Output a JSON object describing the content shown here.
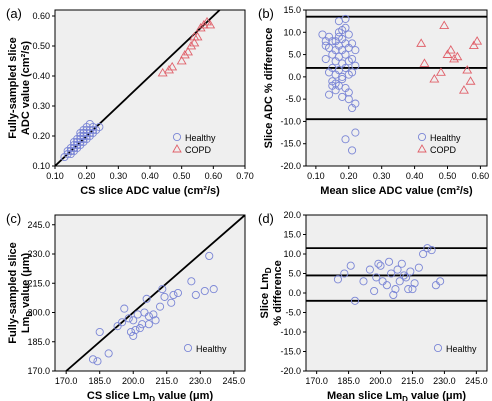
{
  "chart_data": [
    {
      "id": "a",
      "panel_label": "(a)",
      "type": "scatter",
      "xlabel": "CS slice ADC value (cm²/s)",
      "ylabel_lines": [
        "Fully-sampled slice",
        "ADC value (cm²/s)"
      ],
      "xlim": [
        0.1,
        0.7
      ],
      "ylim": [
        0.1,
        0.62
      ],
      "xticks": [
        "0.10",
        "0.20",
        "0.30",
        "0.40",
        "0.50",
        "0.60",
        "0.70"
      ],
      "xtick_values": [
        0.1,
        0.2,
        0.3,
        0.4,
        0.5,
        0.6,
        0.7
      ],
      "yticks": [
        "0.10",
        "0.20",
        "0.30",
        "0.40",
        "0.50",
        "0.60"
      ],
      "ytick_values": [
        0.1,
        0.2,
        0.3,
        0.4,
        0.5,
        0.6
      ],
      "reference_lines": [
        {
          "kind": "identity",
          "from": [
            0.1,
            0.1
          ],
          "to": [
            0.62,
            0.62
          ]
        }
      ],
      "legend": {
        "position": "bottom-right",
        "entries": [
          {
            "label": "Healthy",
            "marker": "circle"
          },
          {
            "label": "COPD",
            "marker": "triangle"
          }
        ]
      },
      "series": [
        {
          "name": "Healthy",
          "marker": "circle",
          "color": "#7b86d6",
          "x": [
            0.13,
            0.14,
            0.14,
            0.15,
            0.15,
            0.15,
            0.16,
            0.16,
            0.16,
            0.16,
            0.17,
            0.17,
            0.17,
            0.17,
            0.18,
            0.18,
            0.18,
            0.18,
            0.18,
            0.19,
            0.19,
            0.19,
            0.19,
            0.19,
            0.2,
            0.2,
            0.2,
            0.2,
            0.21,
            0.21,
            0.21,
            0.22,
            0.22,
            0.23,
            0.16,
            0.17,
            0.18,
            0.19,
            0.2,
            0.21,
            0.15,
            0.17,
            0.19,
            0.22,
            0.24
          ],
          "y": [
            0.13,
            0.14,
            0.15,
            0.14,
            0.15,
            0.16,
            0.15,
            0.16,
            0.17,
            0.18,
            0.16,
            0.17,
            0.18,
            0.19,
            0.17,
            0.18,
            0.19,
            0.2,
            0.21,
            0.18,
            0.19,
            0.2,
            0.21,
            0.22,
            0.19,
            0.2,
            0.21,
            0.22,
            0.2,
            0.21,
            0.22,
            0.21,
            0.23,
            0.22,
            0.16,
            0.18,
            0.19,
            0.21,
            0.23,
            0.24,
            0.15,
            0.17,
            0.2,
            0.22,
            0.23
          ]
        },
        {
          "name": "COPD",
          "marker": "triangle",
          "color": "#e0606a",
          "x": [
            0.44,
            0.46,
            0.47,
            0.5,
            0.51,
            0.52,
            0.53,
            0.54,
            0.54,
            0.55,
            0.56,
            0.57,
            0.58,
            0.59
          ],
          "y": [
            0.41,
            0.42,
            0.43,
            0.45,
            0.47,
            0.48,
            0.5,
            0.51,
            0.53,
            0.53,
            0.56,
            0.57,
            0.58,
            0.57
          ]
        }
      ]
    },
    {
      "id": "b",
      "panel_label": "(b)",
      "type": "scatter",
      "xlabel": "Mean slice ADC value (cm²/s)",
      "ylabel_lines": [
        "Slice ADC % difference"
      ],
      "xlim": [
        0.07,
        0.62
      ],
      "ylim": [
        -20.0,
        15.0
      ],
      "xticks": [
        "0.10",
        "0.20",
        "0.30",
        "0.40",
        "0.50",
        "0.60"
      ],
      "xtick_values": [
        0.1,
        0.2,
        0.3,
        0.4,
        0.5,
        0.6
      ],
      "yticks": [
        "15.0",
        "10.0",
        "5.0",
        "0.0",
        "-5.0",
        "-10.0",
        "-15.0",
        "-20.0"
      ],
      "ytick_values": [
        15,
        10,
        5,
        0,
        -5,
        -10,
        -15,
        -20
      ],
      "reference_lines": [
        {
          "kind": "horizontal",
          "y": 13.5
        },
        {
          "kind": "horizontal",
          "y": 2.0
        },
        {
          "kind": "horizontal",
          "y": -9.5
        }
      ],
      "legend": {
        "position": "bottom-right",
        "entries": [
          {
            "label": "Healthy",
            "marker": "circle"
          },
          {
            "label": "COPD",
            "marker": "triangle"
          }
        ]
      },
      "series": [
        {
          "name": "Healthy",
          "marker": "circle",
          "color": "#7b86d6",
          "x": [
            0.12,
            0.13,
            0.13,
            0.14,
            0.14,
            0.14,
            0.15,
            0.15,
            0.15,
            0.15,
            0.16,
            0.16,
            0.16,
            0.16,
            0.16,
            0.17,
            0.17,
            0.17,
            0.17,
            0.17,
            0.17,
            0.18,
            0.18,
            0.18,
            0.18,
            0.18,
            0.18,
            0.19,
            0.19,
            0.19,
            0.19,
            0.19,
            0.2,
            0.2,
            0.2,
            0.2,
            0.2,
            0.21,
            0.21,
            0.21,
            0.21,
            0.22,
            0.22,
            0.22,
            0.14,
            0.16,
            0.18,
            0.2,
            0.17,
            0.19,
            0.15,
            0.21,
            0.13,
            0.19,
            0.22
          ],
          "y": [
            9.5,
            8.0,
            4.0,
            9.0,
            6.5,
            -4.0,
            8.0,
            5.0,
            2.0,
            -1.0,
            8.0,
            6.0,
            3.5,
            0.5,
            -3.0,
            12.5,
            9.0,
            7.0,
            4.5,
            1.5,
            -2.0,
            10.5,
            8.5,
            6.0,
            3.0,
            0.0,
            -4.5,
            11.0,
            7.5,
            5.0,
            2.0,
            -2.5,
            9.5,
            6.5,
            3.5,
            0.5,
            -5.0,
            7.5,
            4.0,
            1.0,
            -7.0,
            6.0,
            2.5,
            -12.5,
            1.0,
            -1.5,
            -0.5,
            -3.5,
            10.0,
            13.0,
            -2.0,
            -16.5,
            7.0,
            -14.0,
            -6.0
          ]
        },
        {
          "name": "COPD",
          "marker": "triangle",
          "color": "#e0606a",
          "x": [
            0.42,
            0.43,
            0.46,
            0.48,
            0.49,
            0.5,
            0.51,
            0.52,
            0.53,
            0.55,
            0.56,
            0.57,
            0.58,
            0.59
          ],
          "y": [
            7.5,
            3.0,
            -0.5,
            1.0,
            11.5,
            5.0,
            6.0,
            4.0,
            4.5,
            -3.0,
            1.5,
            -1.0,
            7.0,
            8.0
          ]
        }
      ]
    },
    {
      "id": "c",
      "panel_label": "(c)",
      "type": "scatter",
      "xlabel": "CS slice Lm",
      "xlabel_sub": "D",
      "xlabel_tail": " value (μm)",
      "ylabel_lines": [
        "Fully-sampled slice"
      ],
      "ylabel_line2": "Lm",
      "ylabel_line2_sub": "D",
      "ylabel_line2_tail": " value (μm)",
      "xlim": [
        165.0,
        250.0
      ],
      "ylim": [
        170.0,
        250.0
      ],
      "xticks": [
        "170.0",
        "185.0",
        "200.0",
        "215.0",
        "230.0",
        "245.0"
      ],
      "xtick_values": [
        170,
        185,
        200,
        215,
        230,
        245
      ],
      "yticks": [
        "245.0",
        "230.0",
        "215.0",
        "200.0",
        "185.0",
        "170.0"
      ],
      "ytick_values": [
        245,
        230,
        215,
        200,
        185,
        170
      ],
      "reference_lines": [
        {
          "kind": "identity",
          "from": [
            170,
            170
          ],
          "to": [
            250,
            250
          ]
        }
      ],
      "legend": {
        "position": "bottom-right",
        "entries": [
          {
            "label": "Healthy",
            "marker": "circle"
          }
        ]
      },
      "series": [
        {
          "name": "Healthy",
          "marker": "circle",
          "color": "#7b86d6",
          "x": [
            182,
            184,
            185,
            189,
            193,
            195,
            198,
            199,
            200,
            201,
            202,
            203,
            204,
            205,
            206,
            207,
            209,
            210,
            212,
            213,
            214,
            217,
            218,
            220,
            226,
            228,
            232,
            234,
            236,
            200,
            196,
            207
          ],
          "y": [
            176,
            175,
            190,
            179,
            193,
            195,
            197,
            190,
            196,
            191,
            199,
            192,
            194,
            200,
            207,
            194,
            199,
            196,
            203,
            212,
            208,
            205,
            209,
            210,
            216,
            209,
            211,
            229,
            212,
            188,
            202,
            198
          ]
        }
      ]
    },
    {
      "id": "d",
      "panel_label": "(d)",
      "type": "scatter",
      "xlabel": "Mean slice Lm",
      "xlabel_sub": "D",
      "xlabel_tail": " value (μm)",
      "ylabel_lines": [
        "% difference"
      ],
      "ylabel_line1_head": "Slice Lm",
      "ylabel_line1_sub": "D",
      "xlim": [
        165.0,
        250.0
      ],
      "ylim": [
        -20.0,
        20.0
      ],
      "xticks": [
        "170.0",
        "185.0",
        "200.0",
        "215.0",
        "230.0",
        "245.0"
      ],
      "xtick_values": [
        170,
        185,
        200,
        215,
        230,
        245
      ],
      "yticks": [
        "20.0",
        "15.0",
        "10.0",
        "5.0",
        "0.0",
        "-5.0",
        "-10.0",
        "-15.0",
        "-20.0"
      ],
      "ytick_values": [
        20,
        15,
        10,
        5,
        0,
        -5,
        -10,
        -15,
        -20
      ],
      "reference_lines": [
        {
          "kind": "horizontal",
          "y": 11.5
        },
        {
          "kind": "horizontal",
          "y": 4.5
        },
        {
          "kind": "horizontal",
          "y": -2.0
        }
      ],
      "legend": {
        "position": "bottom-right",
        "entries": [
          {
            "label": "Healthy",
            "marker": "circle"
          }
        ]
      },
      "series": [
        {
          "name": "Healthy",
          "marker": "circle",
          "color": "#7b86d6",
          "x": [
            180,
            183,
            186,
            188,
            192,
            195,
            197,
            198,
            200,
            201,
            203,
            204,
            205,
            207,
            208,
            209,
            210,
            212,
            213,
            214,
            216,
            218,
            220,
            222,
            224,
            226,
            228,
            215,
            199,
            206,
            211
          ],
          "y": [
            3.5,
            5.0,
            7.0,
            -2.0,
            3.0,
            6.0,
            0.5,
            4.0,
            7.0,
            3.0,
            2.0,
            8.0,
            5.0,
            1.0,
            6.0,
            3.0,
            7.5,
            4.0,
            1.0,
            5.5,
            2.5,
            6.5,
            10.0,
            11.5,
            11.0,
            2.0,
            3.0,
            1.0,
            7.5,
            -0.5,
            4.5
          ]
        }
      ]
    }
  ]
}
